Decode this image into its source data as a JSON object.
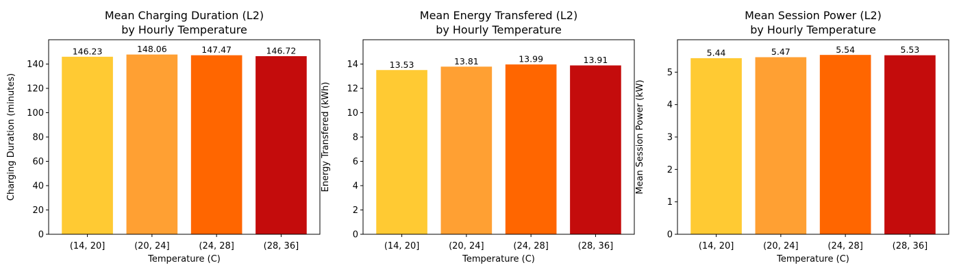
{
  "palette": [
    "#FFCA33",
    "#FFA033",
    "#FF6600",
    "#C40C0C"
  ],
  "chart_data": [
    {
      "type": "bar",
      "title_line1": "Mean Charging Duration (L2)",
      "title_line2": "by Hourly Temperature",
      "xlabel": "Temperature (C)",
      "ylabel": "Charging Duration (minutes)",
      "categories": [
        "(14, 20]",
        "(20, 24]",
        "(24, 28]",
        "(28, 36]"
      ],
      "values": [
        146.23,
        148.06,
        147.47,
        146.72
      ],
      "value_labels": [
        "146.23",
        "148.06",
        "147.47",
        "146.72"
      ],
      "ylim": [
        0,
        160
      ],
      "yticks": [
        0,
        20,
        40,
        60,
        80,
        100,
        120,
        140
      ],
      "grid": false
    },
    {
      "type": "bar",
      "title_line1": "Mean Energy Transfered (L2)",
      "title_line2": "by Hourly Temperature",
      "xlabel": "Temperature (C)",
      "ylabel": "Energy Transfered (kWh)",
      "categories": [
        "(14, 20]",
        "(20, 24]",
        "(24, 28]",
        "(28, 36]"
      ],
      "values": [
        13.53,
        13.81,
        13.99,
        13.91
      ],
      "value_labels": [
        "13.53",
        "13.81",
        "13.99",
        "13.91"
      ],
      "ylim": [
        0,
        16
      ],
      "yticks": [
        0,
        2,
        4,
        6,
        8,
        10,
        12,
        14
      ],
      "grid": false
    },
    {
      "type": "bar",
      "title_line1": "Mean Session Power (L2)",
      "title_line2": "by Hourly Temperature",
      "xlabel": "Temperature (C)",
      "ylabel": "Mean Session Power (kW)",
      "categories": [
        "(14, 20]",
        "(20, 24]",
        "(24, 28]",
        "(28, 36]"
      ],
      "values": [
        5.44,
        5.47,
        5.54,
        5.53
      ],
      "value_labels": [
        "5.44",
        "5.47",
        "5.54",
        "5.53"
      ],
      "ylim": [
        0,
        6
      ],
      "yticks": [
        0,
        1,
        2,
        3,
        4,
        5
      ],
      "grid": false
    }
  ]
}
